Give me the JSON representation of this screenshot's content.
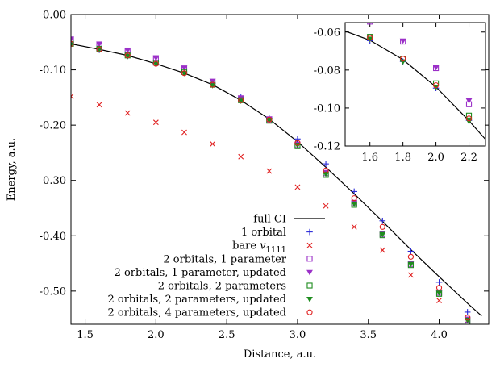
{
  "chart_data": [
    {
      "id": "main",
      "type": "line",
      "xlabel": "Distance, a.u.",
      "ylabel": "Energy, a.u.",
      "xlim": [
        1.4,
        4.35
      ],
      "ylim": [
        -0.56,
        0.0
      ],
      "xticks": [
        1.5,
        2.0,
        2.5,
        3.0,
        3.5,
        4.0
      ],
      "xtick_labels": [
        "1.5",
        "2.0",
        "2.5",
        "3.0",
        "3.5",
        "4.0"
      ],
      "yticks": [
        0.0,
        -0.1,
        -0.2,
        -0.3,
        -0.4,
        -0.5
      ],
      "ytick_labels": [
        "0.00",
        "-0.10",
        "-0.20",
        "-0.30",
        "-0.40",
        "-0.50"
      ],
      "legend_position": "bottom-right",
      "x": [
        1.4,
        1.6,
        1.8,
        2.0,
        2.2,
        2.4,
        2.6,
        2.8,
        3.0,
        3.2,
        3.4,
        3.6,
        3.8,
        4.0,
        4.2
      ],
      "series": [
        {
          "name": "full CI",
          "style": "line",
          "color": "#000000",
          "symbol": "line",
          "x": [
            1.4,
            1.6,
            1.8,
            2.0,
            2.2,
            2.4,
            2.6,
            2.8,
            3.0,
            3.2,
            3.4,
            3.6,
            3.8,
            4.0,
            4.2,
            4.3
          ],
          "values": [
            -0.053,
            -0.063,
            -0.074,
            -0.089,
            -0.106,
            -0.127,
            -0.155,
            -0.189,
            -0.23,
            -0.276,
            -0.324,
            -0.374,
            -0.425,
            -0.474,
            -0.522,
            -0.545
          ]
        },
        {
          "name": "1 orbital",
          "style": "points",
          "color": "#2a2ad8",
          "symbol": "plus",
          "values": [
            -0.052,
            -0.064,
            -0.075,
            -0.089,
            -0.105,
            -0.124,
            -0.15,
            -0.187,
            -0.225,
            -0.27,
            -0.32,
            -0.373,
            -0.428,
            -0.484,
            -0.538
          ]
        },
        {
          "name": "bare v_1111",
          "style": "points",
          "color": "#e02020",
          "symbol": "cross",
          "values": [
            -0.148,
            -0.163,
            -0.178,
            -0.195,
            -0.213,
            -0.234,
            -0.257,
            -0.283,
            -0.312,
            -0.346,
            -0.384,
            -0.426,
            -0.471,
            -0.517,
            -0.554
          ]
        },
        {
          "name": "2 orbitals, 1 parameter",
          "style": "points",
          "color": "#9b30c8",
          "symbol": "square",
          "values": [
            -0.045,
            -0.054,
            -0.065,
            -0.079,
            -0.098,
            -0.122,
            -0.152,
            -0.19,
            -0.236,
            -0.287,
            -0.341,
            -0.397,
            -0.451,
            -0.503,
            -0.552
          ]
        },
        {
          "name": "2 orbitals, 1 parameter, updated",
          "style": "points",
          "color": "#9b30c8",
          "symbol": "triangle-down",
          "values": [
            -0.044,
            -0.053,
            -0.064,
            -0.078,
            -0.096,
            -0.12,
            -0.15,
            -0.188,
            -0.234,
            -0.285,
            -0.339,
            -0.395,
            -0.449,
            -0.501,
            -0.55
          ]
        },
        {
          "name": "2 orbitals, 2 parameters",
          "style": "points",
          "color": "#1e8c1e",
          "symbol": "square",
          "values": [
            -0.053,
            -0.062,
            -0.074,
            -0.087,
            -0.104,
            -0.127,
            -0.155,
            -0.192,
            -0.238,
            -0.29,
            -0.344,
            -0.399,
            -0.453,
            -0.505,
            -0.556
          ]
        },
        {
          "name": "2 orbitals, 2 parameters, updated",
          "style": "points",
          "color": "#1e8c1e",
          "symbol": "triangle-down",
          "values": [
            -0.054,
            -0.063,
            -0.075,
            -0.089,
            -0.106,
            -0.128,
            -0.156,
            -0.191,
            -0.236,
            -0.288,
            -0.342,
            -0.397,
            -0.451,
            -0.503,
            -0.552
          ]
        },
        {
          "name": "2 orbitals, 4 parameters, updated",
          "style": "points",
          "color": "#e02020",
          "symbol": "circle",
          "values": [
            -0.053,
            -0.063,
            -0.074,
            -0.089,
            -0.106,
            -0.127,
            -0.155,
            -0.19,
            -0.232,
            -0.282,
            -0.332,
            -0.384,
            -0.438,
            -0.494,
            -0.548
          ]
        }
      ]
    },
    {
      "id": "inset",
      "type": "line",
      "xlim": [
        1.45,
        2.3
      ],
      "ylim": [
        -0.12,
        -0.055
      ],
      "xticks": [
        1.6,
        1.8,
        2.0,
        2.2
      ],
      "xtick_labels": [
        "1.6",
        "1.8",
        "2.0",
        "2.2"
      ],
      "yticks": [
        -0.06,
        -0.08,
        -0.1,
        -0.12
      ],
      "ytick_labels": [
        "-0.06",
        "-0.08",
        "-0.10",
        "-0.12"
      ],
      "x": [
        1.6,
        1.8,
        2.0,
        2.2
      ],
      "series": [
        {
          "name": "full CI",
          "style": "line",
          "color": "#000000",
          "symbol": "line",
          "x": [
            1.45,
            1.6,
            1.8,
            2.0,
            2.2,
            2.3
          ],
          "values": [
            -0.0595,
            -0.0643,
            -0.0745,
            -0.0889,
            -0.1067,
            -0.1165
          ]
        },
        {
          "name": "1 orbital",
          "style": "points",
          "color": "#2a2ad8",
          "symbol": "plus",
          "values": [
            -0.0645,
            -0.0755,
            -0.0895,
            -0.1065
          ]
        },
        {
          "name": "2 orbitals, 1 parameter",
          "style": "points",
          "color": "#9b30c8",
          "symbol": "square",
          "values": [
            -0.0545,
            -0.065,
            -0.079,
            -0.098
          ]
        },
        {
          "name": "2 orbitals, 1 parameter, updated",
          "style": "points",
          "color": "#9b30c8",
          "symbol": "triangle-down",
          "values": [
            -0.054,
            -0.0645,
            -0.0785,
            -0.096
          ]
        },
        {
          "name": "2 orbitals, 2 parameters",
          "style": "points",
          "color": "#1e8c1e",
          "symbol": "square",
          "values": [
            -0.0625,
            -0.074,
            -0.087,
            -0.104
          ]
        },
        {
          "name": "2 orbitals, 2 parameters, updated",
          "style": "points",
          "color": "#1e8c1e",
          "symbol": "triangle-down",
          "values": [
            -0.0635,
            -0.0755,
            -0.089,
            -0.107
          ]
        },
        {
          "name": "2 orbitals, 4 parameters, updated",
          "style": "points",
          "color": "#e02020",
          "symbol": "circle",
          "values": [
            -0.063,
            -0.074,
            -0.088,
            -0.1055
          ]
        }
      ]
    }
  ]
}
